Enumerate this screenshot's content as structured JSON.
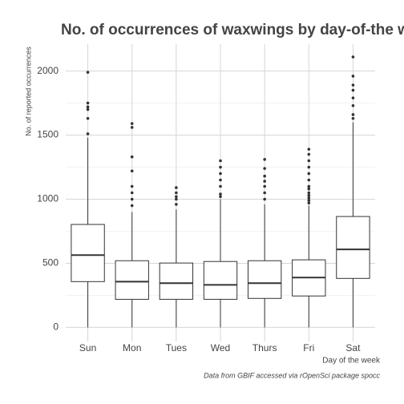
{
  "chart_data": {
    "type": "box",
    "title": "No. of occurrences of waxwings by day-of-the week",
    "y_label": "No. of reported occurrences",
    "x_label": "Day of the week",
    "caption": "Data from GBIF accessed via rOpenSci package spocc",
    "categories": [
      "Sun",
      "Mon",
      "Tues",
      "Wed",
      "Thurs",
      "Fri",
      "Sat"
    ],
    "boxes": [
      {
        "min": 0,
        "q1": 357,
        "median": 564,
        "q3": 803,
        "max": 1480,
        "outliers": [
          1510,
          1630,
          1700,
          1720,
          1750,
          1990
        ]
      },
      {
        "min": 0,
        "q1": 219,
        "median": 357,
        "q3": 520,
        "max": 900,
        "outliers": [
          950,
          1000,
          1050,
          1100,
          1220,
          1330,
          1560,
          1590
        ]
      },
      {
        "min": 0,
        "q1": 219,
        "median": 345,
        "q3": 502,
        "max": 920,
        "outliers": [
          960,
          1000,
          1020,
          1050,
          1090
        ]
      },
      {
        "min": 0,
        "q1": 219,
        "median": 332,
        "q3": 514,
        "max": 1000,
        "outliers": [
          1020,
          1040,
          1100,
          1150,
          1200,
          1250,
          1300
        ]
      },
      {
        "min": 0,
        "q1": 226,
        "median": 345,
        "q3": 520,
        "max": 960,
        "outliers": [
          1000,
          1050,
          1100,
          1140,
          1180,
          1240,
          1310
        ]
      },
      {
        "min": 0,
        "q1": 245,
        "median": 389,
        "q3": 527,
        "max": 950,
        "outliers": [
          970,
          990,
          1010,
          1030,
          1050,
          1080,
          1100,
          1150,
          1200,
          1250,
          1300,
          1350,
          1390
        ]
      },
      {
        "min": 0,
        "q1": 382,
        "median": 608,
        "q3": 865,
        "max": 1600,
        "outliers": [
          1630,
          1660,
          1730,
          1790,
          1850,
          1890,
          1960,
          2110
        ]
      }
    ],
    "color": "#333333",
    "ylim": [
      -110,
      2210
    ],
    "yticks": [
      0,
      500,
      1000,
      1500,
      2000
    ],
    "yticks_minor": [
      250,
      750,
      1250,
      1750
    ],
    "grid": true
  }
}
